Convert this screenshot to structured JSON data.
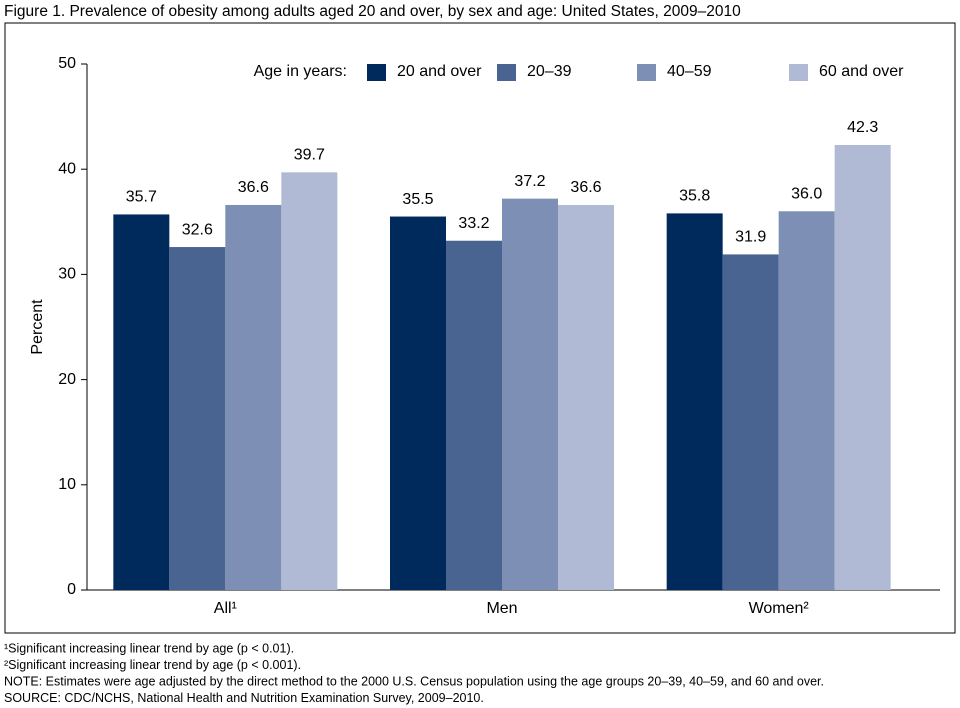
{
  "chart_data": {
    "type": "bar",
    "title": "Figure 1. Prevalence of obesity among adults aged 20 and over, by sex and age: United States, 2009–2010",
    "y_label": "Percent",
    "legend_title": "Age in years:",
    "categories": [
      "All¹",
      "Men",
      "Women²"
    ],
    "series": [
      {
        "name": "20 and over",
        "color": "#002a5c",
        "values": [
          35.7,
          35.5,
          35.8
        ],
        "value_labels": [
          "35.7",
          "35.5",
          "35.8"
        ]
      },
      {
        "name": "20–39",
        "color": "#4a6491",
        "values": [
          32.6,
          33.2,
          31.9
        ],
        "value_labels": [
          "32.6",
          "33.2",
          "31.9"
        ]
      },
      {
        "name": "40–59",
        "color": "#7d8fb5",
        "values": [
          36.6,
          37.2,
          36.0
        ],
        "value_labels": [
          "36.6",
          "37.2",
          "36.0"
        ]
      },
      {
        "name": "60 and over",
        "color": "#b1bad5",
        "values": [
          39.7,
          36.6,
          42.3
        ],
        "value_labels": [
          "39.7",
          "36.6",
          "42.3"
        ]
      }
    ],
    "ylim": [
      0,
      50
    ],
    "yticks": [
      0,
      10,
      20,
      30,
      40,
      50
    ],
    "grid": false,
    "footnotes": [
      "¹Significant increasing linear trend by age (p < 0.01).",
      "²Significant increasing linear trend by age (p < 0.001).",
      "NOTE: Estimates were age adjusted by the direct method to the 2000 U.S. Census population using the age groups 20–39, 40–59, and 60 and over.",
      "SOURCE: CDC/NCHS, National Health and Nutrition Examination Survey, 2009–2010."
    ]
  }
}
